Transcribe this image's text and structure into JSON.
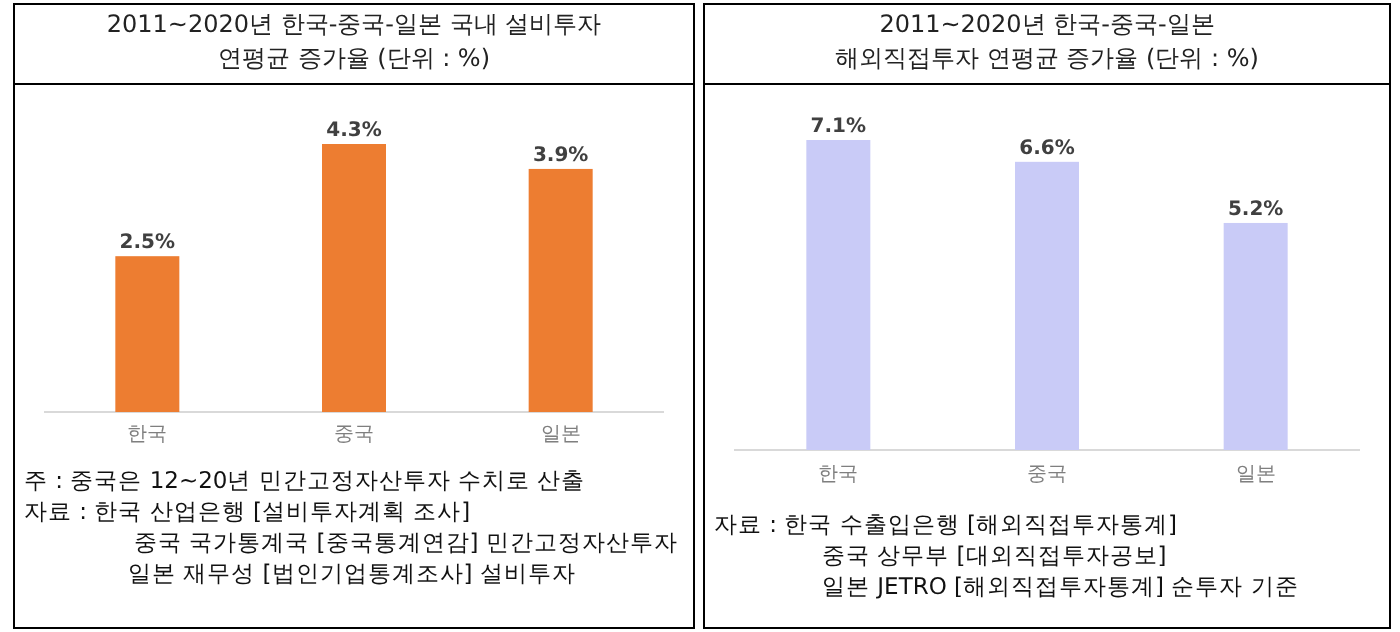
{
  "chart_data": [
    {
      "type": "bar",
      "title": "2011~2020년 한국-중국-일본 국내 설비투자\n연평균 증가율 (단위 : %)",
      "categories": [
        "한국",
        "중국",
        "일본"
      ],
      "values": [
        2.5,
        4.3,
        3.9
      ],
      "value_labels": [
        "2.5%",
        "4.3%",
        "3.9%"
      ],
      "color": "#ed7d31",
      "annotations": [
        "주 : 중국은 12~20년 민간고정자산투자 수치로 산출",
        "자료 : 한국 산업은행 [설비투자계획 조사]",
        "중국 국가통계국 [중국통계연감] 민간고정자산투자",
        "일본 재무성 [법인기업통계조사] 설비투자"
      ]
    },
    {
      "type": "bar",
      "title": "2011~2020년 한국-중국-일본\n해외직접투자 연평균 증가율 (단위 : %)",
      "categories": [
        "한국",
        "중국",
        "일본"
      ],
      "values": [
        7.1,
        6.6,
        5.2
      ],
      "value_labels": [
        "7.1%",
        "6.6%",
        "5.2%"
      ],
      "color": "#c9cbf7",
      "annotations": [
        "자료 : 한국 수출입은행 [해외직접투자통계]",
        "중국 상무부 [대외직접투자공보]",
        "일본 JETRO [해외직접투자통계] 순투자 기준"
      ]
    }
  ]
}
